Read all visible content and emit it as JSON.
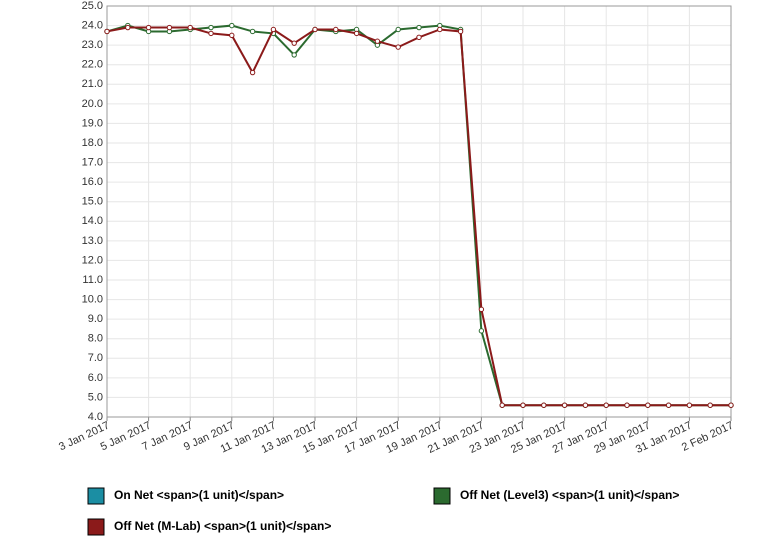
{
  "chart_data": {
    "type": "line",
    "x": [
      "2017-01-03",
      "2017-01-04",
      "2017-01-05",
      "2017-01-06",
      "2017-01-07",
      "2017-01-08",
      "2017-01-09",
      "2017-01-10",
      "2017-01-11",
      "2017-01-12",
      "2017-01-13",
      "2017-01-14",
      "2017-01-15",
      "2017-01-16",
      "2017-01-17",
      "2017-01-18",
      "2017-01-19",
      "2017-01-20",
      "2017-01-21",
      "2017-01-22",
      "2017-01-23",
      "2017-01-24",
      "2017-01-25",
      "2017-01-26",
      "2017-01-27",
      "2017-01-28",
      "2017-01-29",
      "2017-01-30",
      "2017-01-31",
      "2017-02-01",
      "2017-02-02"
    ],
    "series": [
      {
        "name": "On Net <span>(1 unit)</span>",
        "color": "#1b8ea3",
        "values": [
          null,
          null,
          null,
          null,
          null,
          null,
          null,
          null,
          null,
          null,
          null,
          null,
          null,
          null,
          null,
          null,
          null,
          null,
          null,
          null,
          null,
          null,
          null,
          null,
          null,
          null,
          null,
          null,
          null,
          null,
          null
        ]
      },
      {
        "name": "Off Net (Level3) <span>(1 unit)</span>",
        "color": "#2b6a2f",
        "values": [
          23.7,
          24.0,
          23.7,
          23.7,
          23.8,
          23.9,
          24.0,
          23.7,
          23.6,
          22.5,
          23.8,
          23.7,
          23.8,
          23.0,
          23.8,
          23.9,
          24.0,
          23.8,
          8.4,
          4.6,
          4.6,
          4.6,
          4.6,
          4.6,
          4.6,
          4.6,
          4.6,
          4.6,
          4.6,
          4.6,
          4.6
        ]
      },
      {
        "name": "Off Net (M-Lab) <span>(1 unit)</span>",
        "color": "#8b1a1a",
        "values": [
          23.7,
          23.9,
          23.9,
          23.9,
          23.9,
          23.6,
          23.5,
          21.6,
          23.8,
          23.1,
          23.8,
          23.8,
          23.6,
          23.2,
          22.9,
          23.4,
          23.8,
          23.7,
          9.5,
          4.6,
          4.6,
          4.6,
          4.6,
          4.6,
          4.6,
          4.6,
          4.6,
          4.6,
          4.6,
          4.6,
          4.6
        ]
      }
    ],
    "xlim": [
      "2017-01-03",
      "2017-02-02"
    ],
    "xticks": [
      {
        "value": "2017-01-03",
        "label": "3 Jan 2017"
      },
      {
        "value": "2017-01-05",
        "label": "5 Jan 2017"
      },
      {
        "value": "2017-01-07",
        "label": "7 Jan 2017"
      },
      {
        "value": "2017-01-09",
        "label": "9 Jan 2017"
      },
      {
        "value": "2017-01-11",
        "label": "11 Jan 2017"
      },
      {
        "value": "2017-01-13",
        "label": "13 Jan 2017"
      },
      {
        "value": "2017-01-15",
        "label": "15 Jan 2017"
      },
      {
        "value": "2017-01-17",
        "label": "17 Jan 2017"
      },
      {
        "value": "2017-01-19",
        "label": "19 Jan 2017"
      },
      {
        "value": "2017-01-21",
        "label": "21 Jan 2017"
      },
      {
        "value": "2017-01-23",
        "label": "23 Jan 2017"
      },
      {
        "value": "2017-01-25",
        "label": "25 Jan 2017"
      },
      {
        "value": "2017-01-27",
        "label": "27 Jan 2017"
      },
      {
        "value": "2017-01-29",
        "label": "29 Jan 2017"
      },
      {
        "value": "2017-01-31",
        "label": "31 Jan 2017"
      },
      {
        "value": "2017-02-02",
        "label": "2 Feb 2017"
      }
    ],
    "ylim": [
      4,
      25
    ],
    "yticks": [
      {
        "value": 4,
        "label": "4.0"
      },
      {
        "value": 5,
        "label": "5.0"
      },
      {
        "value": 6,
        "label": "6.0"
      },
      {
        "value": 7,
        "label": "7.0"
      },
      {
        "value": 8,
        "label": "8.0"
      },
      {
        "value": 9,
        "label": "9.0"
      },
      {
        "value": 10,
        "label": "10.0"
      },
      {
        "value": 11,
        "label": "11.0"
      },
      {
        "value": 12,
        "label": "12.0"
      },
      {
        "value": 13,
        "label": "13.0"
      },
      {
        "value": 14,
        "label": "14.0"
      },
      {
        "value": 15,
        "label": "15.0"
      },
      {
        "value": 16,
        "label": "16.0"
      },
      {
        "value": 17,
        "label": "17.0"
      },
      {
        "value": 18,
        "label": "18.0"
      },
      {
        "value": 19,
        "label": "19.0"
      },
      {
        "value": 20,
        "label": "20.0"
      },
      {
        "value": 21,
        "label": "21.0"
      },
      {
        "value": 22,
        "label": "22.0"
      },
      {
        "value": 23,
        "label": "23.0"
      },
      {
        "value": 24,
        "label": "24.0"
      },
      {
        "value": 25,
        "label": "25.0"
      }
    ],
    "grid": true
  }
}
